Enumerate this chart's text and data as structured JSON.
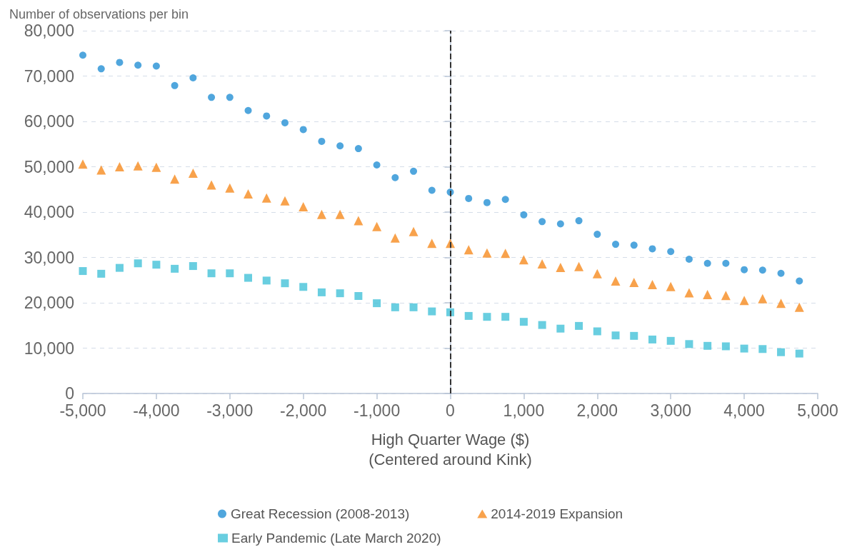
{
  "chart_data": {
    "type": "scatter",
    "ylabel": "Number of observations per bin",
    "xlabel": "High Quarter Wage ($)\n(Centered around Kink)",
    "x": [
      -5000,
      -4750,
      -4500,
      -4250,
      -4000,
      -3750,
      -3500,
      -3250,
      -3000,
      -2750,
      -2500,
      -2250,
      -2000,
      -1750,
      -1500,
      -1250,
      -1000,
      -750,
      -500,
      -250,
      0,
      250,
      500,
      750,
      1000,
      1250,
      1500,
      1750,
      2000,
      2250,
      2500,
      2750,
      3000,
      3250,
      3500,
      3750,
      4000,
      4250,
      4500,
      4750
    ],
    "series": [
      {
        "name": "Great Recession (2008-2013)",
        "color": "#2490d5",
        "marker": "circle",
        "values": [
          74600,
          71600,
          73000,
          72400,
          72200,
          67900,
          69600,
          65300,
          65300,
          62400,
          61200,
          59700,
          58200,
          55600,
          54600,
          54000,
          50400,
          47600,
          49000,
          44800,
          44400,
          43000,
          42100,
          42800,
          39400,
          37900,
          37400,
          38100,
          35100,
          32900,
          32700,
          31900,
          31300,
          29600,
          28700,
          28700,
          27300,
          27200,
          26500,
          24800
        ]
      },
      {
        "name": "2014-2019 Expansion",
        "color": "#f68b1f",
        "marker": "triangle",
        "values": [
          50600,
          49300,
          50000,
          50200,
          49900,
          47300,
          48600,
          46000,
          45300,
          44000,
          43100,
          42500,
          41200,
          39500,
          39500,
          38100,
          36800,
          34300,
          35700,
          33100,
          33100,
          31700,
          31000,
          30900,
          29500,
          28600,
          27800,
          28000,
          26400,
          24800,
          24500,
          24000,
          23600,
          22200,
          21800,
          21600,
          20500,
          20900,
          19900,
          19000
        ]
      },
      {
        "name": "Early Pandemic (Late March 2020)",
        "color": "#44c2d8",
        "marker": "square",
        "values": [
          27000,
          26400,
          27700,
          28700,
          28400,
          27500,
          28100,
          26500,
          26500,
          25500,
          24900,
          24300,
          23500,
          22300,
          22100,
          21500,
          19900,
          19000,
          19000,
          18100,
          17900,
          17100,
          16900,
          16900,
          15800,
          15100,
          14300,
          14900,
          13700,
          12800,
          12700,
          11900,
          11600,
          10900,
          10500,
          10400,
          9900,
          9800,
          9100,
          8800
        ]
      }
    ],
    "xlim": [
      -5000,
      5000
    ],
    "xticks": [
      {
        "value": -5000,
        "label": "-5,000"
      },
      {
        "value": -4000,
        "label": "-4,000"
      },
      {
        "value": -3000,
        "label": "-3,000"
      },
      {
        "value": -2000,
        "label": "-2,000"
      },
      {
        "value": -1000,
        "label": "-1,000"
      },
      0,
      {
        "value": 1000,
        "label": "1,000"
      },
      {
        "value": 2000,
        "label": "2,000"
      },
      {
        "value": 3000,
        "label": "3,000"
      },
      {
        "value": 4000,
        "label": "4,000"
      },
      {
        "value": 5000,
        "label": "5,000"
      }
    ],
    "ylim": [
      0,
      80000
    ],
    "yticks": [
      0,
      {
        "value": 10000,
        "label": "10,000"
      },
      {
        "value": 20000,
        "label": "20,000"
      },
      {
        "value": 30000,
        "label": "30,000"
      },
      {
        "value": 40000,
        "label": "40,000"
      },
      {
        "value": 50000,
        "label": "50,000"
      },
      {
        "value": 60000,
        "label": "60,000"
      },
      {
        "value": 70000,
        "label": "70,000"
      },
      {
        "value": 80000,
        "label": "80,000"
      }
    ],
    "ref_lines": [
      {
        "axis": "x",
        "value": 0,
        "label": null,
        "color": "#333333",
        "line_style": "dashed"
      }
    ],
    "grid": "y",
    "legend": "bottom"
  }
}
